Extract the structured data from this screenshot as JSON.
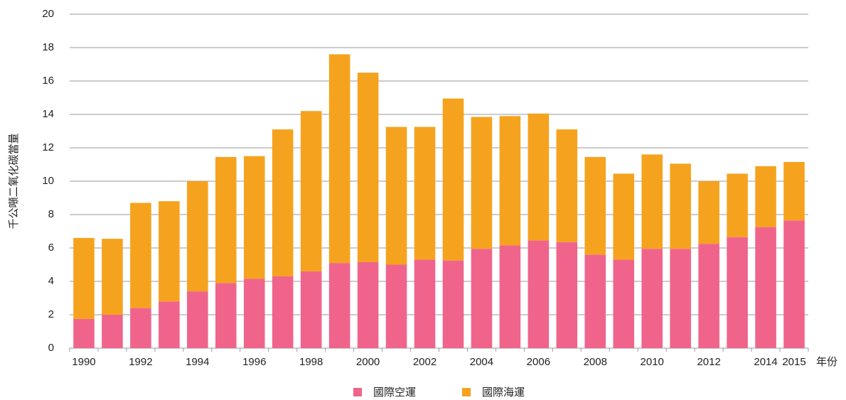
{
  "chart_data": {
    "type": "stacked_bar",
    "ylabel": "千公噸二氧化碳當量",
    "xlabel": "年份",
    "categories": [
      "1990",
      null,
      "1992",
      null,
      "1994",
      null,
      "1996",
      null,
      "1998",
      null,
      "2000",
      null,
      "2002",
      null,
      "2004",
      null,
      "2006",
      null,
      "2008",
      null,
      "2010",
      null,
      "2012",
      null,
      "2014",
      "2015"
    ],
    "series": [
      {
        "name": "國際空運",
        "color": "#f0648c",
        "values": [
          1.75,
          2.0,
          2.4,
          2.8,
          3.4,
          3.9,
          4.15,
          4.3,
          4.6,
          5.1,
          5.15,
          5.0,
          5.3,
          5.25,
          5.95,
          6.15,
          6.45,
          6.35,
          5.6,
          5.3,
          5.95,
          5.95,
          6.25,
          6.65,
          7.25,
          7.65
        ]
      },
      {
        "name": "國際海運",
        "color": "#f5a31e",
        "values": [
          4.85,
          4.55,
          6.3,
          6.0,
          6.6,
          7.55,
          7.35,
          8.8,
          9.6,
          12.5,
          11.35,
          8.25,
          7.95,
          9.7,
          7.9,
          7.75,
          7.6,
          6.75,
          5.85,
          5.15,
          5.65,
          5.1,
          3.75,
          3.8,
          3.65,
          3.5
        ]
      }
    ],
    "ylim": [
      0,
      20
    ],
    "yticks": [
      0,
      2,
      4,
      6,
      8,
      10,
      12,
      14,
      16,
      18,
      20
    ],
    "grid": true
  }
}
